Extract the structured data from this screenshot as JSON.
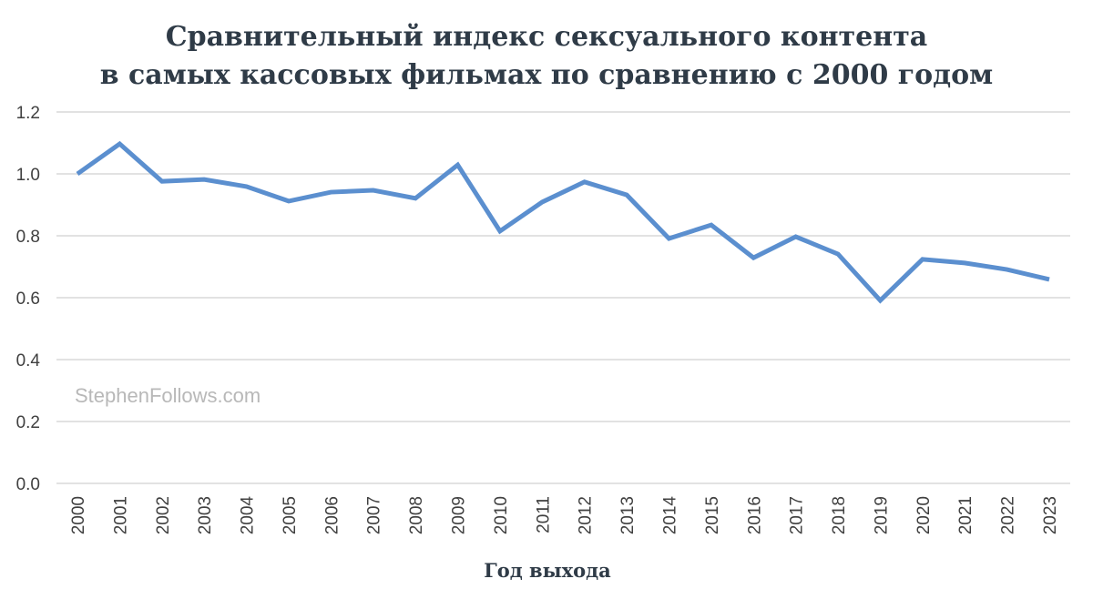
{
  "chart_data": {
    "type": "line",
    "title_line1": "Сравнительный индекс сексуального контента",
    "title_line2": "в самых кассовых фильмах по сравнению с 2000 годом",
    "xlabel": "Год выхода",
    "ylabel": "",
    "watermark": "StephenFollows.com",
    "ylim": [
      0,
      1.2
    ],
    "yticks": [
      "0.0",
      "0.2",
      "0.4",
      "0.6",
      "0.8",
      "1.0",
      "1.2"
    ],
    "grid": true,
    "line_color": "#5b8fcf",
    "categories": [
      "2000",
      "2001",
      "2002",
      "2003",
      "2004",
      "2005",
      "2006",
      "2007",
      "2008",
      "2009",
      "2010",
      "2011",
      "2012",
      "2013",
      "2014",
      "2015",
      "2016",
      "2017",
      "2018",
      "2019",
      "2020",
      "2021",
      "2022",
      "2023"
    ],
    "series": [
      {
        "name": "Index",
        "values": [
          1.0,
          1.097,
          0.976,
          0.982,
          0.959,
          0.912,
          0.941,
          0.947,
          0.921,
          1.029,
          0.815,
          0.909,
          0.974,
          0.932,
          0.791,
          0.835,
          0.729,
          0.797,
          0.741,
          0.591,
          0.724,
          0.712,
          0.691,
          0.659
        ]
      }
    ]
  }
}
